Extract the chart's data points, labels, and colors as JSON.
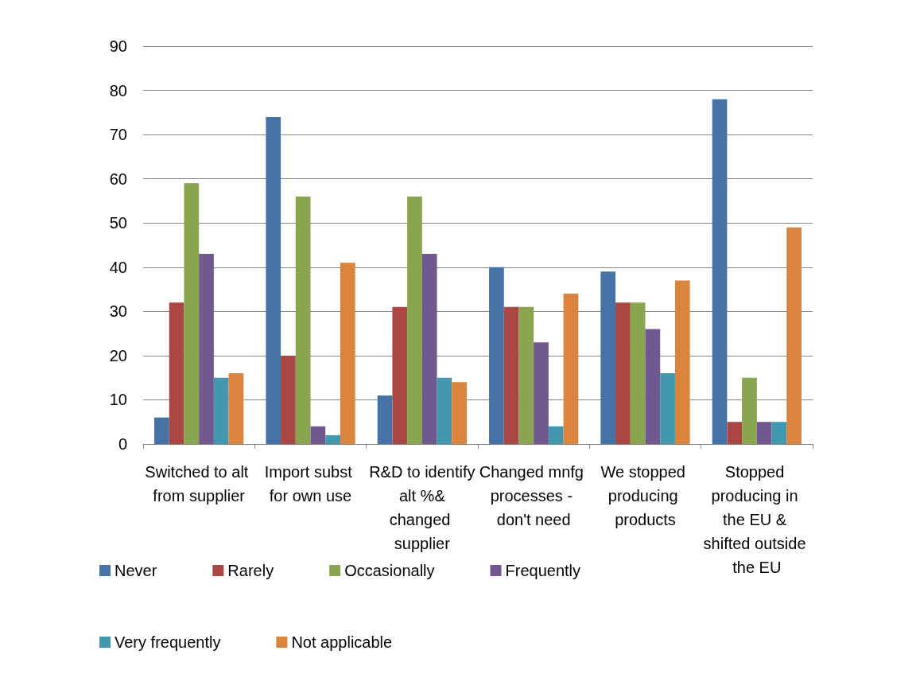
{
  "chart_data": {
    "type": "bar",
    "categories": [
      "Switched to alt from supplier",
      "Import subst for own use",
      "R&D to identify alt %& changed supplier",
      "Changed mnfg processes - don't need",
      "We stopped producing products",
      "Stopped producing in the EU & shifted outside the EU"
    ],
    "series": [
      {
        "name": "Never",
        "color": "#4572a7",
        "values": [
          6,
          74,
          11,
          40,
          39,
          78
        ]
      },
      {
        "name": "Rarely",
        "color": "#aa4643",
        "values": [
          32,
          20,
          31,
          31,
          32,
          5
        ]
      },
      {
        "name": "Occasionally",
        "color": "#89a54e",
        "values": [
          59,
          56,
          56,
          31,
          32,
          15
        ]
      },
      {
        "name": "Frequently",
        "color": "#71588f",
        "values": [
          43,
          4,
          43,
          23,
          26,
          5
        ]
      },
      {
        "name": "Very frequently",
        "color": "#4198af",
        "values": [
          15,
          2,
          15,
          4,
          16,
          5
        ]
      },
      {
        "name": "Not applicable",
        "color": "#db843d",
        "values": [
          16,
          41,
          14,
          34,
          37,
          49
        ]
      }
    ],
    "ylim": [
      0,
      90
    ],
    "yticks": [
      0,
      10,
      20,
      30,
      40,
      50,
      60,
      70,
      80,
      90
    ],
    "grid": "y",
    "legend": "bottom left"
  }
}
